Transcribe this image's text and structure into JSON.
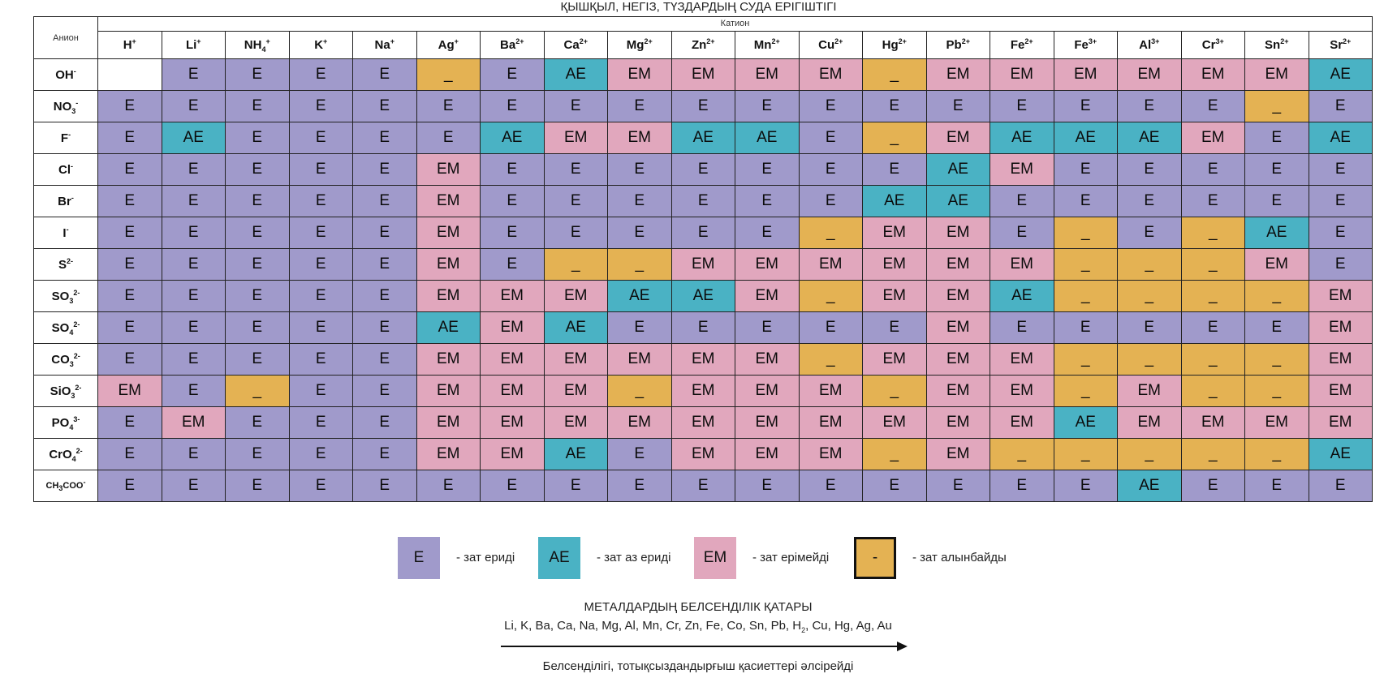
{
  "title": "ҚЫШҚЫЛ, НЕГІЗ, ТҮЗДАРДЫҢ СУДА ЕРІГІШТІГІ",
  "corner_label": "Анион",
  "cation_header": "Катион",
  "cations": [
    {
      "base": "H",
      "sup": "+",
      "sub": ""
    },
    {
      "base": "Li",
      "sup": "+",
      "sub": ""
    },
    {
      "base": "NH",
      "sub": "4",
      "sup": "+"
    },
    {
      "base": "K",
      "sup": "+",
      "sub": ""
    },
    {
      "base": "Na",
      "sup": "+",
      "sub": ""
    },
    {
      "base": "Ag",
      "sup": "+",
      "sub": ""
    },
    {
      "base": "Ba",
      "sup": "2+",
      "sub": ""
    },
    {
      "base": "Ca",
      "sup": "2+",
      "sub": ""
    },
    {
      "base": "Mg",
      "sup": "2+",
      "sub": ""
    },
    {
      "base": "Zn",
      "sup": "2+",
      "sub": ""
    },
    {
      "base": "Mn",
      "sup": "2+",
      "sub": ""
    },
    {
      "base": "Cu",
      "sup": "2+",
      "sub": ""
    },
    {
      "base": "Hg",
      "sup": "2+",
      "sub": ""
    },
    {
      "base": "Pb",
      "sup": "2+",
      "sub": ""
    },
    {
      "base": "Fe",
      "sup": "2+",
      "sub": ""
    },
    {
      "base": "Fe",
      "sup": "3+",
      "sub": ""
    },
    {
      "base": "Al",
      "sup": "3+",
      "sub": ""
    },
    {
      "base": "Cr",
      "sup": "3+",
      "sub": ""
    },
    {
      "base": "Sn",
      "sup": "2+",
      "sub": ""
    },
    {
      "base": "Sr",
      "sup": "2+",
      "sub": ""
    }
  ],
  "anions": [
    {
      "base": "OH",
      "sub": "",
      "sup": "-",
      "small": false
    },
    {
      "base": "NO",
      "sub": "3",
      "sup": "-",
      "small": false
    },
    {
      "base": "F",
      "sub": "",
      "sup": "-",
      "small": false
    },
    {
      "base": "Cl",
      "sub": "",
      "sup": "-",
      "small": false
    },
    {
      "base": "Br",
      "sub": "",
      "sup": "-",
      "small": false
    },
    {
      "base": "I",
      "sub": "",
      "sup": "-",
      "small": false
    },
    {
      "base": "S",
      "sub": "",
      "sup": "2-",
      "small": false
    },
    {
      "base": "SO",
      "sub": "3",
      "sup": "2-",
      "small": false
    },
    {
      "base": "SO",
      "sub": "4",
      "sup": "2-",
      "small": false
    },
    {
      "base": "CO",
      "sub": "3",
      "sup": "2-",
      "small": false
    },
    {
      "base": "SiO",
      "sub": "3",
      "sup": "2-",
      "small": false
    },
    {
      "base": "PO",
      "sub": "4",
      "sup": "3-",
      "small": false
    },
    {
      "base": "CrO",
      "sub": "4",
      "sup": "2-",
      "small": false
    },
    {
      "base": "CH",
      "sub": "3",
      "sup": "-",
      "tail": "COO",
      "small": true
    }
  ],
  "rows": [
    [
      "",
      "E",
      "E",
      "E",
      "E",
      "_",
      "E",
      "AE",
      "EM",
      "EM",
      "EM",
      "EM",
      "_",
      "EM",
      "EM",
      "EM",
      "EM",
      "EM",
      "EM",
      "AE"
    ],
    [
      "E",
      "E",
      "E",
      "E",
      "E",
      "E",
      "E",
      "E",
      "E",
      "E",
      "E",
      "E",
      "E",
      "E",
      "E",
      "E",
      "E",
      "E",
      "_",
      "E"
    ],
    [
      "E",
      "AE",
      "E",
      "E",
      "E",
      "E",
      "AE",
      "EM",
      "EM",
      "AE",
      "AE",
      "E",
      "_",
      "EM",
      "AE",
      "AE",
      "AE",
      "EM",
      "E",
      "AE"
    ],
    [
      "E",
      "E",
      "E",
      "E",
      "E",
      "EM",
      "E",
      "E",
      "E",
      "E",
      "E",
      "E",
      "E",
      "AE",
      "EM",
      "E",
      "E",
      "E",
      "E",
      "E"
    ],
    [
      "E",
      "E",
      "E",
      "E",
      "E",
      "EM",
      "E",
      "E",
      "E",
      "E",
      "E",
      "E",
      "AE",
      "AE",
      "E",
      "E",
      "E",
      "E",
      "E",
      "E"
    ],
    [
      "E",
      "E",
      "E",
      "E",
      "E",
      "EM",
      "E",
      "E",
      "E",
      "E",
      "E",
      "_",
      "EM",
      "EM",
      "E",
      "_",
      "E",
      "_",
      "AE",
      "E"
    ],
    [
      "E",
      "E",
      "E",
      "E",
      "E",
      "EM",
      "E",
      "_",
      "_",
      "EM",
      "EM",
      "EM",
      "EM",
      "EM",
      "EM",
      "_",
      "_",
      "_",
      "EM",
      "E"
    ],
    [
      "E",
      "E",
      "E",
      "E",
      "E",
      "EM",
      "EM",
      "EM",
      "AE",
      "AE",
      "EM",
      "_",
      "EM",
      "EM",
      "AE",
      "_",
      "_",
      "_",
      "_",
      "EM"
    ],
    [
      "E",
      "E",
      "E",
      "E",
      "E",
      "AE",
      "EM",
      "AE",
      "E",
      "E",
      "E",
      "E",
      "E",
      "EM",
      "E",
      "E",
      "E",
      "E",
      "E",
      "EM"
    ],
    [
      "E",
      "E",
      "E",
      "E",
      "E",
      "EM",
      "EM",
      "EM",
      "EM",
      "EM",
      "EM",
      "_",
      "EM",
      "EM",
      "EM",
      "_",
      "_",
      "_",
      "_",
      "EM"
    ],
    [
      "EM",
      "E",
      "_",
      "E",
      "E",
      "EM",
      "EM",
      "EM",
      "_",
      "EM",
      "EM",
      "EM",
      "_",
      "EM",
      "EM",
      "_",
      "EM",
      "_",
      "_",
      "EM"
    ],
    [
      "E",
      "EM",
      "E",
      "E",
      "E",
      "EM",
      "EM",
      "EM",
      "EM",
      "EM",
      "EM",
      "EM",
      "EM",
      "EM",
      "EM",
      "AE",
      "EM",
      "EM",
      "EM",
      "EM"
    ],
    [
      "E",
      "E",
      "E",
      "E",
      "E",
      "EM",
      "EM",
      "AE",
      "E",
      "EM",
      "EM",
      "EM",
      "_",
      "EM",
      "_",
      "_",
      "_",
      "_",
      "_",
      "AE"
    ],
    [
      "E",
      "E",
      "E",
      "E",
      "E",
      "E",
      "E",
      "E",
      "E",
      "E",
      "E",
      "E",
      "E",
      "E",
      "E",
      "E",
      "AE",
      "E",
      "E",
      "E"
    ]
  ],
  "colors": {
    "E": "#a09acb",
    "AE": "#4ab2c4",
    "EM": "#e1a7bd",
    "_": "#e4b253",
    "": "#ffffff"
  },
  "legend": [
    {
      "code": "E",
      "box_label": "E",
      "text": "- зат ериді"
    },
    {
      "code": "AE",
      "box_label": "AE",
      "text": "- зат аз ериді"
    },
    {
      "code": "EM",
      "box_label": "EM",
      "text": "- зат ерімейді"
    },
    {
      "code": "_",
      "box_label": "-",
      "text": "- зат алынбайды"
    }
  ],
  "activity_series": {
    "title": "МЕТАЛДАРДЫҢ БЕЛСЕНДІЛІК ҚАТАРЫ",
    "list_before": "Li, K, Ba, Ca, Na, Mg, Al, Mn, Cr, Zn, Fe, Co, Sn, Pb, H",
    "list_sub": "2",
    "list_after": ", Cu, Hg, Ag, Au",
    "caption": "Белсенділігі, тотықсыздандырғыш қасиеттері әлсірейді",
    "arrow_icon": "arrow-right-icon"
  }
}
